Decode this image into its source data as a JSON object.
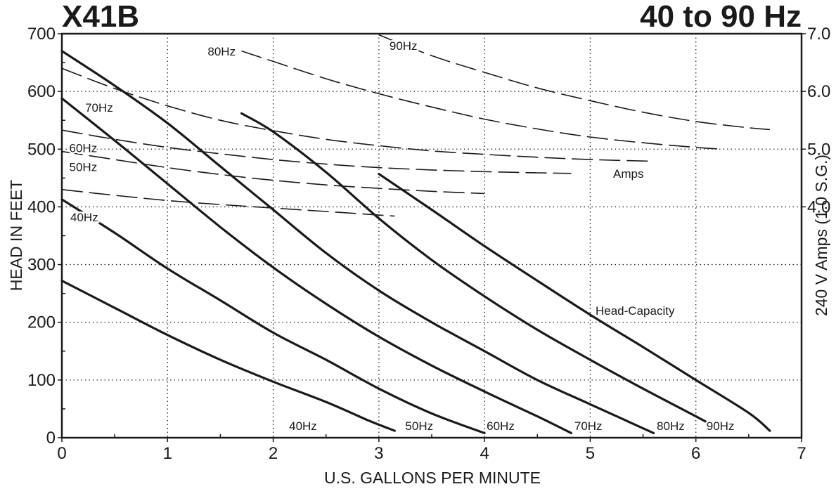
{
  "chart_data": {
    "type": "line",
    "title": "X41B",
    "subtitle": "40 to 90 Hz",
    "xlabel": "U.S. GALLONS PER MINUTE",
    "ylabel": "HEAD IN FEET",
    "y2label": "240 V Amps (1.0 S.G.)",
    "xlim": [
      0,
      7
    ],
    "ylim": [
      0,
      700
    ],
    "y2lim": [
      0,
      7.0
    ],
    "x_ticks": [
      "0",
      "1",
      "2",
      "3",
      "4",
      "5",
      "6",
      "7"
    ],
    "y_ticks": [
      "0",
      "100",
      "200",
      "300",
      "400",
      "500",
      "600",
      "700"
    ],
    "y2_ticks": [
      "4.0",
      "5.0",
      "6.0",
      "7.0"
    ],
    "grid": true,
    "annotations": {
      "head_capacity": "Head-Capacity",
      "amps": "Amps"
    },
    "head_capacity_series": [
      {
        "name": "40Hz",
        "x": [
          0,
          0.5,
          1.0,
          1.5,
          2.0,
          2.5,
          2.9,
          3.15
        ],
        "y": [
          272,
          225,
          178,
          135,
          97,
          62,
          30,
          12
        ]
      },
      {
        "name": "50Hz",
        "x": [
          0,
          0.5,
          1.0,
          1.5,
          2.0,
          2.5,
          3.0,
          3.5,
          4.0
        ],
        "y": [
          413,
          355,
          293,
          238,
          182,
          135,
          85,
          42,
          8
        ]
      },
      {
        "name": "60Hz",
        "x": [
          0,
          0.5,
          1.0,
          1.5,
          2.0,
          2.5,
          3.0,
          3.5,
          4.0,
          4.5,
          4.82
        ],
        "y": [
          588,
          515,
          440,
          365,
          295,
          232,
          175,
          125,
          80,
          37,
          8
        ]
      },
      {
        "name": "70Hz",
        "x": [
          0,
          0.5,
          1.0,
          1.5,
          2.0,
          2.5,
          3.0,
          3.5,
          4.0,
          4.5,
          5.0,
          5.6
        ],
        "y": [
          670,
          610,
          545,
          470,
          395,
          320,
          255,
          200,
          150,
          100,
          58,
          8
        ]
      },
      {
        "name": "80Hz",
        "x": [
          1.7,
          2.0,
          2.5,
          3.0,
          3.5,
          4.0,
          4.5,
          5.0,
          5.5,
          6.0,
          6.25
        ],
        "y": [
          562,
          530,
          460,
          380,
          308,
          245,
          187,
          135,
          85,
          37,
          12
        ]
      },
      {
        "name": "90Hz",
        "x": [
          3.0,
          3.5,
          4.0,
          4.5,
          5.0,
          5.5,
          6.0,
          6.5,
          6.7
        ],
        "y": [
          457,
          395,
          332,
          272,
          213,
          157,
          100,
          43,
          12
        ]
      }
    ],
    "amps_series": [
      {
        "name": "40Hz",
        "x": [
          0,
          0.5,
          1.0,
          1.5,
          2.0,
          2.5,
          3.15
        ],
        "y": [
          4.3,
          4.2,
          4.11,
          4.04,
          3.98,
          3.92,
          3.84
        ]
      },
      {
        "name": "50Hz",
        "x": [
          0,
          0.5,
          1.0,
          1.5,
          2.0,
          2.5,
          3.0,
          3.5,
          4.0
        ],
        "y": [
          4.96,
          4.82,
          4.68,
          4.56,
          4.46,
          4.38,
          4.32,
          4.27,
          4.23
        ]
      },
      {
        "name": "60Hz",
        "x": [
          0,
          0.5,
          1.0,
          1.5,
          2.0,
          2.5,
          3.0,
          3.5,
          4.0,
          4.5,
          4.82
        ],
        "y": [
          5.33,
          5.17,
          5.03,
          4.92,
          4.82,
          4.74,
          4.68,
          4.64,
          4.61,
          4.59,
          4.58
        ]
      },
      {
        "name": "70Hz",
        "x": [
          0,
          0.5,
          1.0,
          1.5,
          2.0,
          2.5,
          3.0,
          3.5,
          4.0,
          4.5,
          5.0,
          5.6
        ],
        "y": [
          6.4,
          6.05,
          5.75,
          5.5,
          5.32,
          5.17,
          5.06,
          4.97,
          4.91,
          4.86,
          4.82,
          4.79
        ]
      },
      {
        "name": "80Hz",
        "x": [
          1.7,
          2.0,
          2.5,
          3.0,
          3.5,
          4.0,
          4.5,
          5.0,
          5.5,
          6.0,
          6.25
        ],
        "y": [
          6.7,
          6.52,
          6.22,
          5.96,
          5.73,
          5.52,
          5.35,
          5.21,
          5.11,
          5.03,
          5.0
        ]
      },
      {
        "name": "90Hz",
        "x": [
          3.0,
          3.5,
          4.0,
          4.5,
          5.0,
          5.5,
          6.0,
          6.5,
          6.7
        ],
        "y": [
          6.98,
          6.62,
          6.33,
          6.06,
          5.84,
          5.64,
          5.48,
          5.37,
          5.34
        ]
      }
    ]
  }
}
